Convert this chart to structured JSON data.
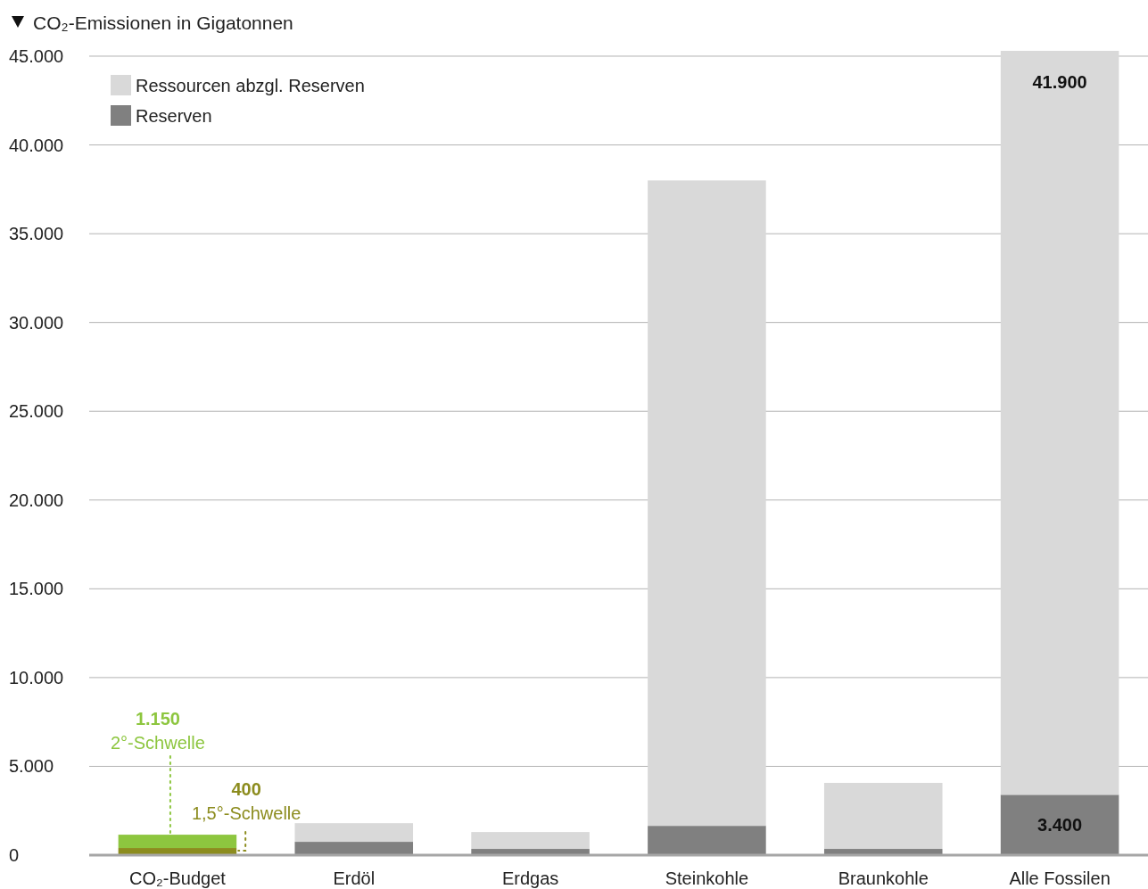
{
  "chart_data": {
    "type": "bar",
    "title": "CO₂-Emissionen in Gigatonnen",
    "stacked": true,
    "categories": [
      "CO₂-Budget",
      "Erdöl",
      "Erdgas",
      "Steinkohle",
      "Braunkohle",
      "Alle Fossilen"
    ],
    "series": [
      {
        "name": "Reserven",
        "color": "#808080",
        "colors": [
          "#8c8c1e",
          "#808080",
          "#808080",
          "#808080",
          "#808080",
          "#808080"
        ],
        "values": [
          400,
          750,
          350,
          1650,
          350,
          3400
        ],
        "value_labels": [
          null,
          null,
          null,
          null,
          null,
          "3.400"
        ]
      },
      {
        "name": "Ressourcen abzgl. Reserven",
        "color": "#d9d9d9",
        "colors": [
          "#8dc63f",
          "#d9d9d9",
          "#d9d9d9",
          "#d9d9d9",
          "#d9d9d9",
          "#d9d9d9"
        ],
        "values": [
          750,
          1050,
          950,
          36350,
          3720,
          41900
        ],
        "value_labels": [
          null,
          null,
          null,
          null,
          null,
          "41.900"
        ]
      }
    ],
    "ylim": [
      0,
      45300
    ],
    "yticks": [
      0,
      {
        "value": 5000,
        "label": "5.000"
      },
      {
        "value": 10000,
        "label": "10.000"
      },
      {
        "value": 15000,
        "label": "15.000"
      },
      {
        "value": 20000,
        "label": "20.000"
      },
      {
        "value": 25000,
        "label": "25.000"
      },
      {
        "value": 30000,
        "label": "30.000"
      },
      {
        "value": 35000,
        "label": "35.000"
      },
      {
        "value": 40000,
        "label": "40.000"
      },
      {
        "value": 45000,
        "label": "45.000"
      }
    ],
    "grid": "y",
    "legend": "top left",
    "annotations": [
      "1.150",
      {
        "text": "2°-Schwelle",
        "x": "CO₂-Budget",
        "y": 1150
      },
      "400",
      {
        "text": "1,5°-Schwelle",
        "x": "CO₂-Budget",
        "y": 400
      }
    ]
  }
}
